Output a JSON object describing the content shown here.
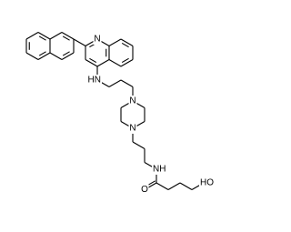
{
  "atom_labels": [
    "N",
    "HN",
    "N",
    "N",
    "NH",
    "O",
    "HO"
  ]
}
